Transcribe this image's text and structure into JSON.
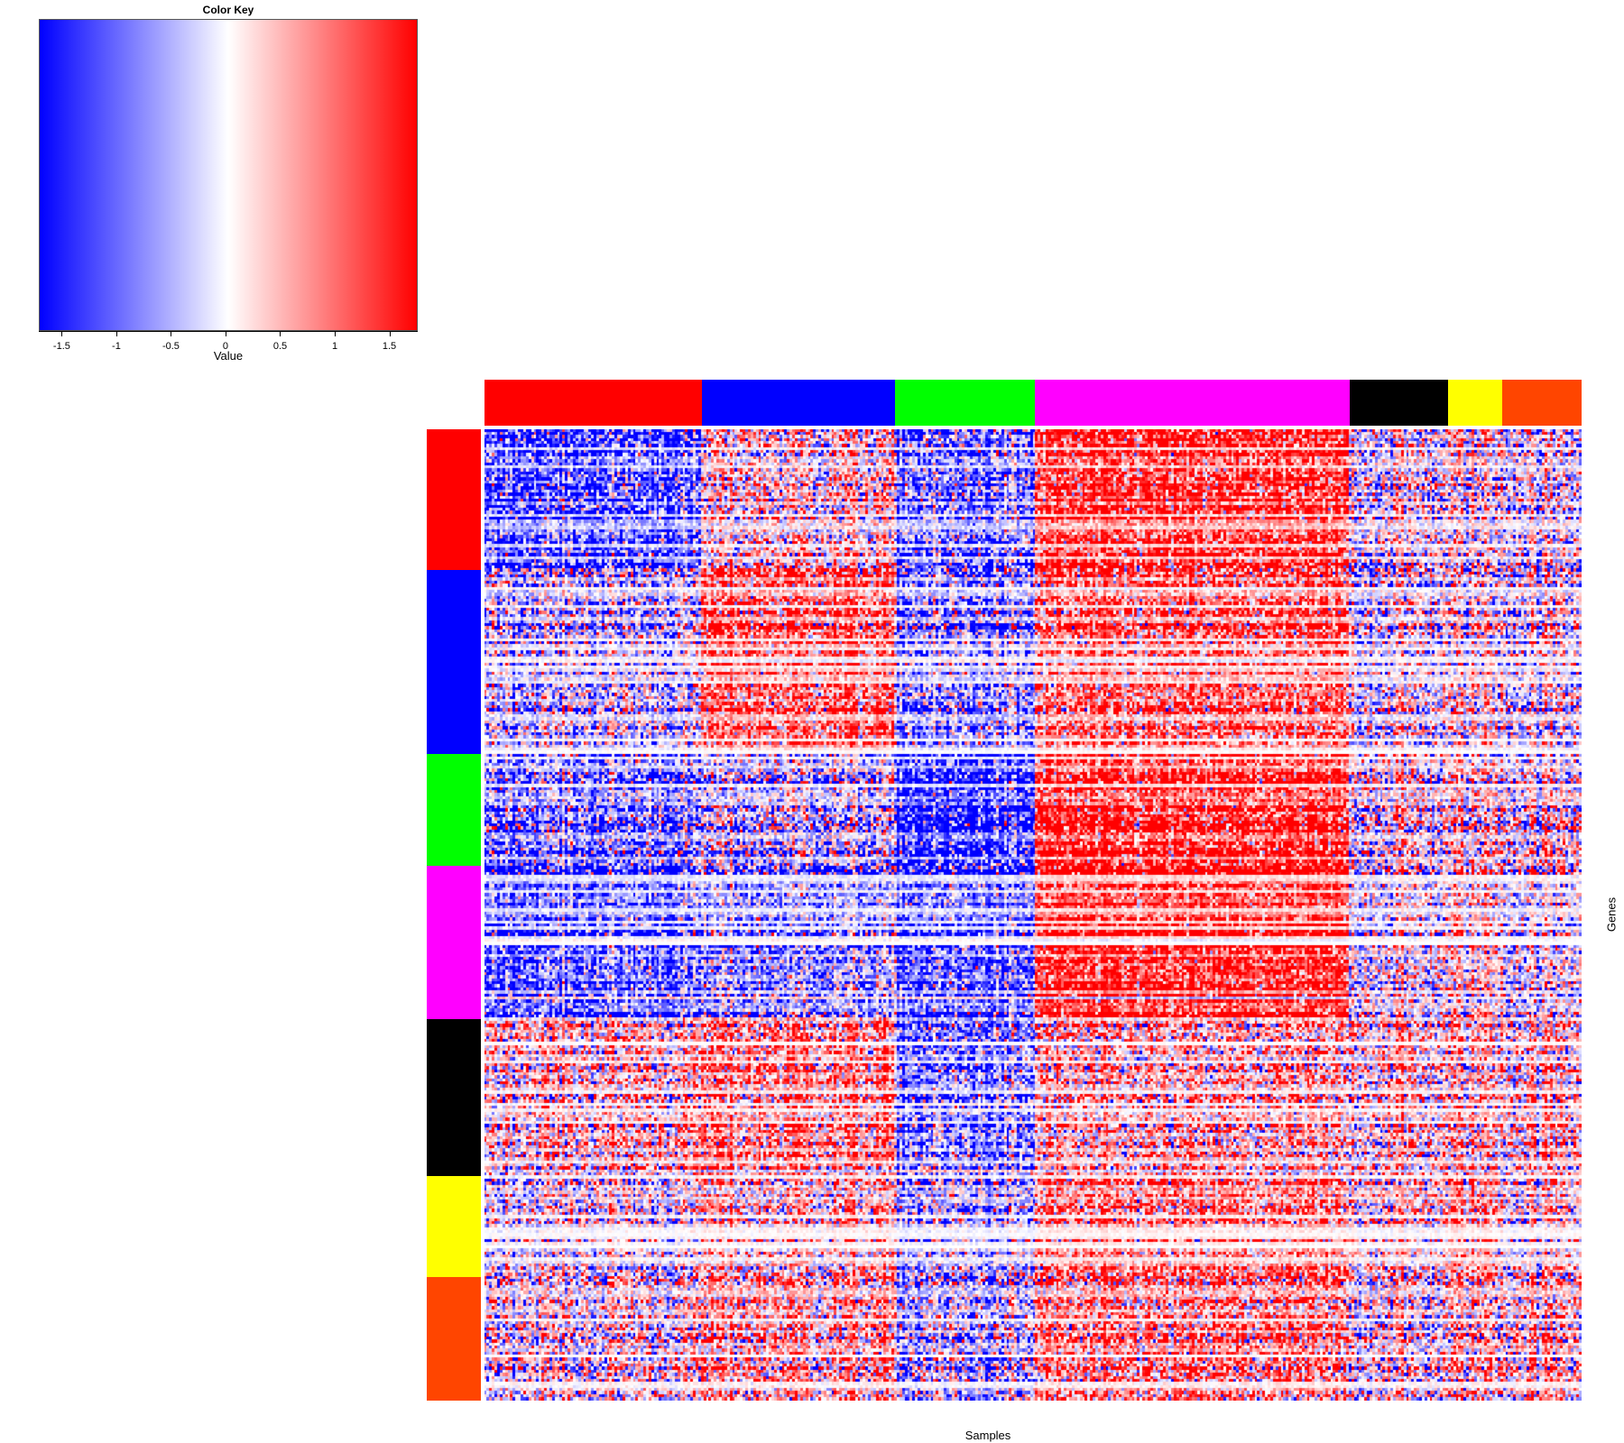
{
  "chart_data": {
    "type": "heatmap",
    "xlabel": "Samples",
    "ylabel": "Genes",
    "color_key": {
      "title": "Color Key",
      "xlabel": "Value",
      "ticks": [
        -1.5,
        -1,
        -0.5,
        0,
        0.5,
        1,
        1.5
      ],
      "tick_labels": [
        "-1.5",
        "-1",
        "-0.5",
        "0",
        "0.5",
        "1",
        "1.5"
      ],
      "range": [
        -1.71,
        1.76
      ],
      "low_color": "#0000FF",
      "mid_color": "#FFFFFF",
      "high_color": "#FF0000"
    },
    "column_groups": [
      {
        "color": "#FF0000",
        "fraction": 0.198
      },
      {
        "color": "#0000FF",
        "fraction": 0.176
      },
      {
        "color": "#00FF00",
        "fraction": 0.128
      },
      {
        "color": "#FF00FF",
        "fraction": 0.287
      },
      {
        "color": "#000000",
        "fraction": 0.089
      },
      {
        "color": "#FFFF00",
        "fraction": 0.05
      },
      {
        "color": "#FF4500",
        "fraction": 0.072
      }
    ],
    "row_groups": [
      {
        "color": "#FF0000",
        "fraction": 0.145
      },
      {
        "color": "#0000FF",
        "fraction": 0.189
      },
      {
        "color": "#00FF00",
        "fraction": 0.115
      },
      {
        "color": "#FF00FF",
        "fraction": 0.158
      },
      {
        "color": "#000000",
        "fraction": 0.162
      },
      {
        "color": "#FFFF00",
        "fraction": 0.104
      },
      {
        "color": "#FF4500",
        "fraction": 0.127
      }
    ],
    "block_means": [
      [
        -0.8,
        0.2,
        -0.6,
        1.0,
        0.0,
        0.1,
        0.0
      ],
      [
        -0.2,
        0.8,
        -0.5,
        0.7,
        0.0,
        0.1,
        0.0
      ],
      [
        -0.5,
        -0.2,
        -1.0,
        1.0,
        0.1,
        0.2,
        0.1
      ],
      [
        -0.8,
        -0.5,
        -0.8,
        1.2,
        0.0,
        0.2,
        0.0
      ],
      [
        0.3,
        0.6,
        -0.6,
        0.3,
        0.3,
        0.3,
        0.3
      ],
      [
        0.0,
        0.3,
        -0.3,
        0.6,
        0.2,
        0.5,
        0.2
      ],
      [
        0.1,
        0.4,
        -0.3,
        0.5,
        0.1,
        0.3,
        0.3
      ]
    ],
    "n_rows": 320,
    "n_cols": 420
  }
}
